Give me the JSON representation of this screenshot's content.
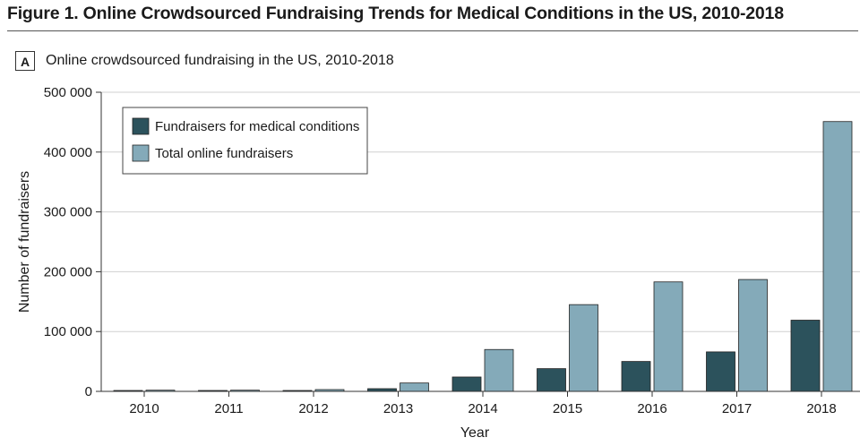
{
  "figure": {
    "title": "Figure 1. Online Crowdsourced Fundraising Trends for Medical Conditions in the US, 2010-2018",
    "panel_letter": "A",
    "panel_title": "Online crowdsourced fundraising in the US, 2010-2018"
  },
  "chart_data": {
    "type": "bar",
    "xlabel": "Year",
    "ylabel": "Number of fundraisers",
    "ylim": [
      0,
      500000
    ],
    "yticks": [
      0,
      100000,
      200000,
      300000,
      400000,
      500000
    ],
    "ytick_labels": [
      "0",
      "100 000",
      "200 000",
      "300 000",
      "400 000",
      "500 000"
    ],
    "categories": [
      "2010",
      "2011",
      "2012",
      "2013",
      "2014",
      "2015",
      "2016",
      "2017",
      "2018"
    ],
    "series": [
      {
        "name": "Fundraisers for medical conditions",
        "color": "#2c525c",
        "values": [
          1500,
          1500,
          1500,
          4500,
          24000,
          38000,
          50000,
          66000,
          119000
        ]
      },
      {
        "name": "Total online fundraisers",
        "color": "#84aab9",
        "values": [
          2000,
          2000,
          3000,
          14000,
          70000,
          145000,
          183000,
          187000,
          451000
        ]
      }
    ],
    "grid": true,
    "legend_position": "top-left"
  }
}
